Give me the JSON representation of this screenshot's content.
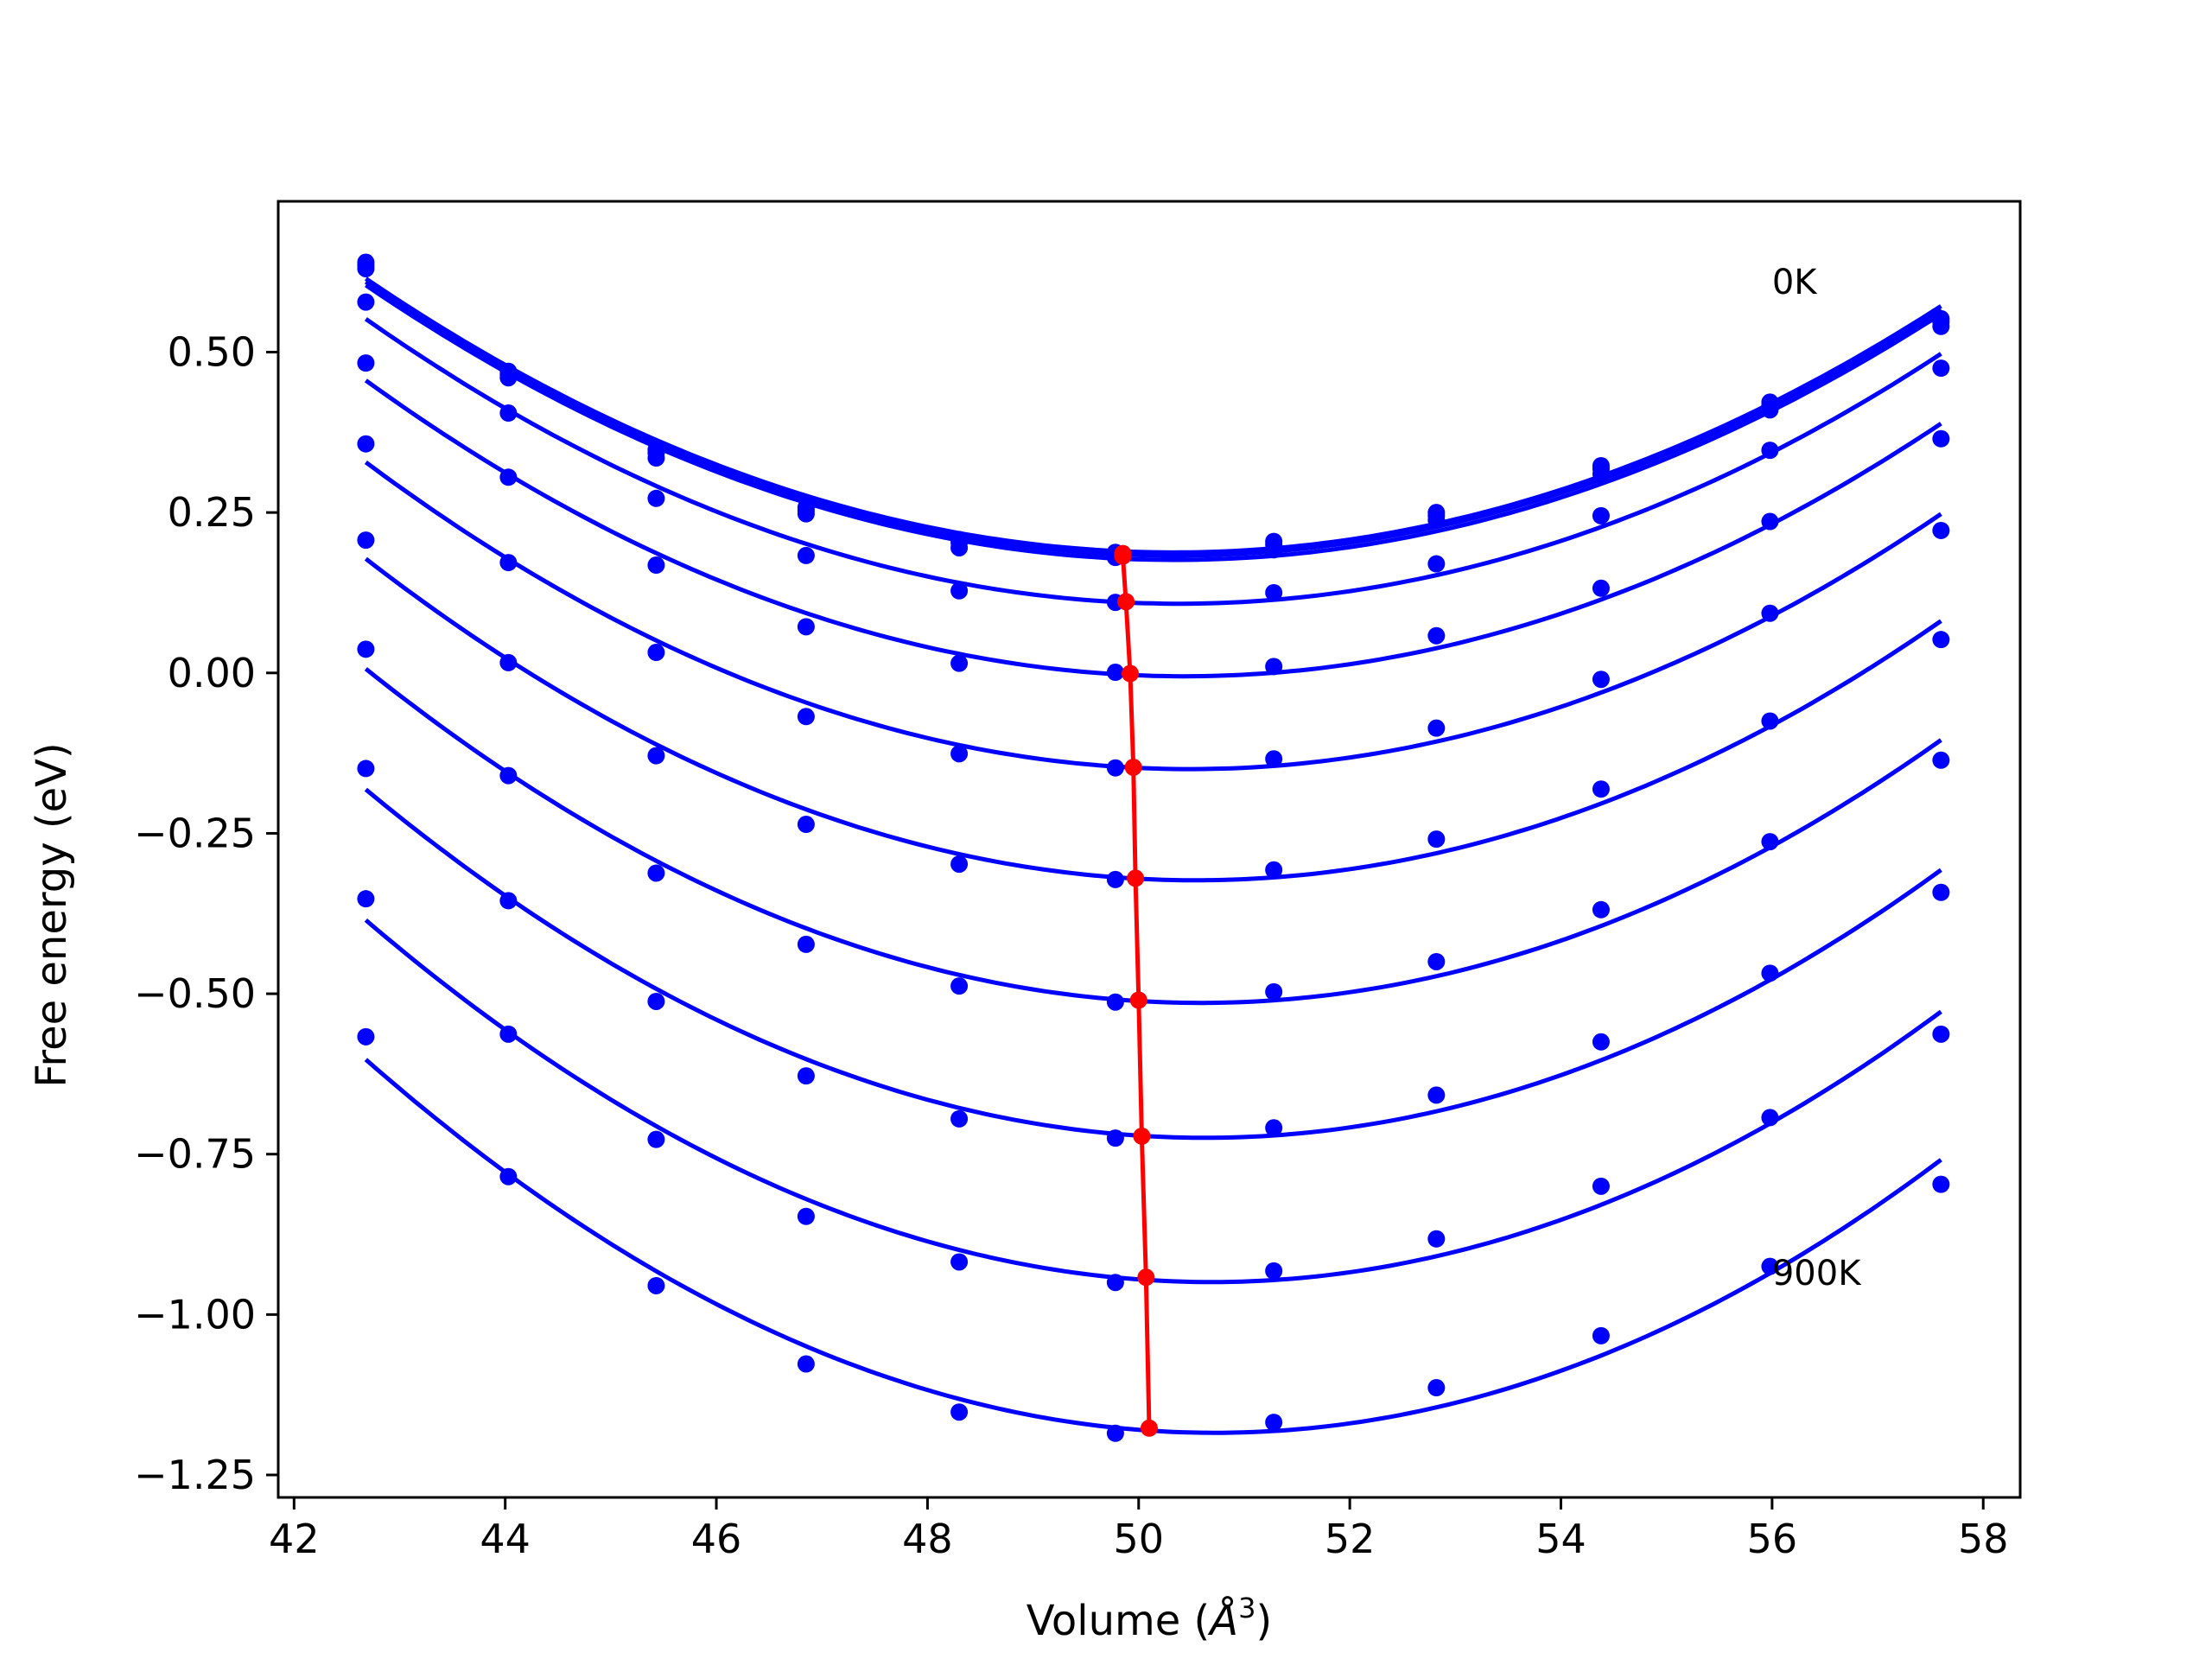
{
  "chart_data": {
    "type": "line",
    "title": "",
    "xlabel": "Volume (",
    "xlabel_unit": "Å",
    "xlabel_exp": "3",
    "xlabel_close": ")",
    "ylabel": "Free energy (eV)",
    "xlim": [
      41.85,
      58.35
    ],
    "ylim": [
      -1.285,
      0.735
    ],
    "xticks": [
      42,
      44,
      46,
      48,
      50,
      52,
      54,
      56,
      58
    ],
    "xtick_labels": [
      "42",
      "44",
      "46",
      "48",
      "50",
      "52",
      "54",
      "56",
      "58"
    ],
    "yticks": [
      -1.25,
      -1.0,
      -0.75,
      -0.5,
      -0.25,
      0.0,
      0.25,
      0.5
    ],
    "ytick_labels": [
      "−1.25",
      "−1.00",
      "−0.75",
      "−0.50",
      "−0.25",
      "0.00",
      "0.25",
      "0.50"
    ],
    "grid": false,
    "annotations": [
      {
        "text": "0K",
        "x": 56.0,
        "y": 0.61
      },
      {
        "text": "900K",
        "x": 56.0,
        "y": -0.935
      }
    ],
    "x": [
      42.68,
      44.03,
      45.43,
      46.85,
      48.3,
      49.78,
      51.28,
      52.82,
      54.38,
      55.98,
      57.6
    ],
    "series": [
      {
        "values": [
          0.64,
          0.47,
          0.348,
          0.258,
          0.208,
          0.188,
          0.205,
          0.25,
          0.323,
          0.422,
          0.552
        ]
      },
      {
        "values": [
          0.635,
          0.465,
          0.343,
          0.253,
          0.203,
          0.183,
          0.2,
          0.245,
          0.318,
          0.417,
          0.547
        ]
      },
      {
        "values": [
          0.63,
          0.46,
          0.335,
          0.248,
          0.195,
          0.18,
          0.192,
          0.238,
          0.31,
          0.41,
          0.54
        ]
      },
      {
        "values": [
          0.578,
          0.405,
          0.272,
          0.183,
          0.128,
          0.11,
          0.125,
          0.17,
          0.245,
          0.347,
          0.475
        ]
      },
      {
        "values": [
          0.483,
          0.305,
          0.168,
          0.072,
          0.015,
          0.001,
          0.01,
          0.058,
          0.132,
          0.236,
          0.365
        ]
      },
      {
        "values": [
          0.357,
          0.172,
          0.032,
          -0.068,
          -0.126,
          -0.148,
          -0.134,
          -0.086,
          -0.01,
          0.093,
          0.222
        ]
      },
      {
        "values": [
          0.207,
          0.016,
          -0.129,
          -0.236,
          -0.298,
          -0.322,
          -0.307,
          -0.259,
          -0.181,
          -0.075,
          0.052
        ]
      },
      {
        "values": [
          0.037,
          -0.16,
          -0.312,
          -0.423,
          -0.488,
          -0.513,
          -0.497,
          -0.45,
          -0.369,
          -0.263,
          -0.136
        ]
      },
      {
        "values": [
          -0.149,
          -0.355,
          -0.512,
          -0.628,
          -0.695,
          -0.725,
          -0.709,
          -0.658,
          -0.575,
          -0.468,
          -0.342
        ]
      },
      {
        "values": [
          -0.352,
          -0.563,
          -0.727,
          -0.847,
          -0.918,
          -0.95,
          -0.932,
          -0.882,
          -0.8,
          -0.693,
          -0.563
        ]
      },
      {
        "values": [
          -0.567,
          -0.785,
          -0.955,
          -1.077,
          -1.152,
          -1.185,
          -1.168,
          -1.114,
          -1.033,
          -0.925,
          -0.797
        ]
      }
    ],
    "minima_line": {
      "x": [
        49.85,
        49.85,
        49.88,
        49.92,
        49.95,
        49.97,
        50.0,
        50.03,
        50.07
      ],
      "y": [
        0.186,
        0.182,
        0.111,
        -0.001,
        -0.147,
        -0.32,
        -0.51,
        -0.722,
        -0.942
      ],
      "last": {
        "x": 50.1,
        "y": -1.177
      }
    },
    "colors": {
      "series": "#0000ff",
      "minima": "#ff0000",
      "axes": "#000000"
    }
  }
}
